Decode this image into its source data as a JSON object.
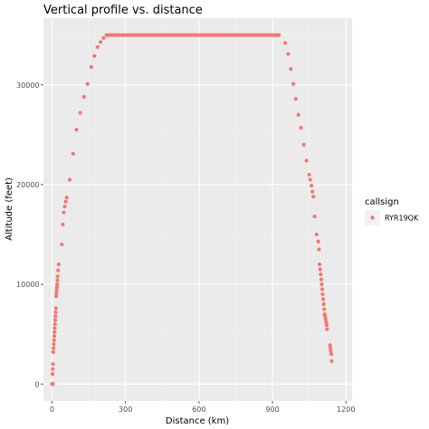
{
  "chart_data": {
    "type": "scatter",
    "title": "Vertical profile vs. distance",
    "xlabel": "Distance (km)",
    "ylabel": "Altitude (feet)",
    "xlim": [
      -35,
      1225
    ],
    "ylim": [
      -1700,
      36700
    ],
    "x_ticks": [
      0,
      300,
      600,
      900,
      1200
    ],
    "y_ticks": [
      0,
      10000,
      20000,
      30000
    ],
    "x_tick_labels": [
      "0",
      "300",
      "600",
      "900",
      "1200"
    ],
    "y_tick_labels": [
      "0",
      "10000",
      "20000",
      "30000"
    ],
    "grid": true,
    "legend": {
      "title": "callsign",
      "position": "right"
    },
    "colors": {
      "point": "#F8766D",
      "panel": "#EBEBEB",
      "grid_major": "#FFFFFF",
      "grid_minor": "#F5F5F5",
      "tick": "#333333"
    },
    "series": [
      {
        "name": "RYR19QK",
        "points": [
          [
            0,
            0
          ],
          [
            2,
            0
          ],
          [
            4,
            0
          ],
          [
            2,
            1000
          ],
          [
            3,
            1500
          ],
          [
            4,
            2000
          ],
          [
            5,
            3200
          ],
          [
            6,
            3600
          ],
          [
            7,
            4000
          ],
          [
            8,
            4400
          ],
          [
            9,
            4800
          ],
          [
            10,
            5200
          ],
          [
            11,
            5600
          ],
          [
            12,
            6000
          ],
          [
            13,
            6400
          ],
          [
            14,
            6800
          ],
          [
            15,
            7200
          ],
          [
            16,
            7600
          ],
          [
            17,
            8800
          ],
          [
            18,
            9100
          ],
          [
            19,
            9400
          ],
          [
            20,
            9700
          ],
          [
            21,
            10000
          ],
          [
            22,
            10400
          ],
          [
            23,
            10800
          ],
          [
            25,
            11400
          ],
          [
            27,
            12000
          ],
          [
            40,
            14000
          ],
          [
            44,
            16000
          ],
          [
            48,
            17200
          ],
          [
            52,
            17800
          ],
          [
            56,
            18300
          ],
          [
            60,
            18700
          ],
          [
            72,
            20500
          ],
          [
            86,
            23100
          ],
          [
            100,
            25500
          ],
          [
            115,
            27200
          ],
          [
            130,
            28800
          ],
          [
            145,
            30100
          ],
          [
            160,
            31800
          ],
          [
            173,
            32900
          ],
          [
            186,
            33800
          ],
          [
            198,
            34300
          ],
          [
            210,
            34700
          ],
          [
            222,
            35000
          ],
          [
            233,
            35000
          ],
          [
            244,
            35000
          ],
          [
            255,
            35000
          ],
          [
            266,
            35000
          ],
          [
            277,
            35000
          ],
          [
            288,
            35000
          ],
          [
            299,
            35000
          ],
          [
            310,
            35000
          ],
          [
            321,
            35000
          ],
          [
            332,
            35000
          ],
          [
            343,
            35000
          ],
          [
            354,
            35000
          ],
          [
            365,
            35000
          ],
          [
            376,
            35000
          ],
          [
            387,
            35000
          ],
          [
            398,
            35000
          ],
          [
            409,
            35000
          ],
          [
            420,
            35000
          ],
          [
            431,
            35000
          ],
          [
            442,
            35000
          ],
          [
            453,
            35000
          ],
          [
            464,
            35000
          ],
          [
            475,
            35000
          ],
          [
            486,
            35000
          ],
          [
            497,
            35000
          ],
          [
            508,
            35000
          ],
          [
            519,
            35000
          ],
          [
            530,
            35000
          ],
          [
            541,
            35000
          ],
          [
            552,
            35000
          ],
          [
            563,
            35000
          ],
          [
            574,
            35000
          ],
          [
            585,
            35000
          ],
          [
            596,
            35000
          ],
          [
            607,
            35000
          ],
          [
            618,
            35000
          ],
          [
            629,
            35000
          ],
          [
            640,
            35000
          ],
          [
            651,
            35000
          ],
          [
            662,
            35000
          ],
          [
            673,
            35000
          ],
          [
            684,
            35000
          ],
          [
            695,
            35000
          ],
          [
            706,
            35000
          ],
          [
            717,
            35000
          ],
          [
            728,
            35000
          ],
          [
            739,
            35000
          ],
          [
            750,
            35000
          ],
          [
            761,
            35000
          ],
          [
            772,
            35000
          ],
          [
            783,
            35000
          ],
          [
            794,
            35000
          ],
          [
            805,
            35000
          ],
          [
            816,
            35000
          ],
          [
            827,
            35000
          ],
          [
            838,
            35000
          ],
          [
            849,
            35000
          ],
          [
            860,
            35000
          ],
          [
            871,
            35000
          ],
          [
            882,
            35000
          ],
          [
            893,
            35000
          ],
          [
            904,
            35000
          ],
          [
            915,
            35000
          ],
          [
            926,
            35000
          ],
          [
            952,
            34200
          ],
          [
            964,
            33100
          ],
          [
            975,
            31600
          ],
          [
            985,
            30100
          ],
          [
            995,
            28600
          ],
          [
            1006,
            27000
          ],
          [
            1016,
            25700
          ],
          [
            1028,
            24000
          ],
          [
            1039,
            22400
          ],
          [
            1050,
            21000
          ],
          [
            1054,
            20500
          ],
          [
            1059,
            19900
          ],
          [
            1063,
            19300
          ],
          [
            1067,
            18800
          ],
          [
            1072,
            16800
          ],
          [
            1080,
            15000
          ],
          [
            1087,
            14300
          ],
          [
            1090,
            13500
          ],
          [
            1092,
            12000
          ],
          [
            1095,
            11500
          ],
          [
            1097,
            11000
          ],
          [
            1099,
            10500
          ],
          [
            1101,
            10000
          ],
          [
            1103,
            9500
          ],
          [
            1105,
            9000
          ],
          [
            1107,
            8500
          ],
          [
            1109,
            8000
          ],
          [
            1111,
            7500
          ],
          [
            1113,
            7000
          ],
          [
            1115,
            6800
          ],
          [
            1117,
            6500
          ],
          [
            1119,
            6200
          ],
          [
            1121,
            5900
          ],
          [
            1123,
            5500
          ],
          [
            1135,
            3900
          ],
          [
            1136,
            3600
          ],
          [
            1138,
            3300
          ],
          [
            1140,
            3000
          ],
          [
            1142,
            2300
          ]
        ]
      }
    ]
  }
}
